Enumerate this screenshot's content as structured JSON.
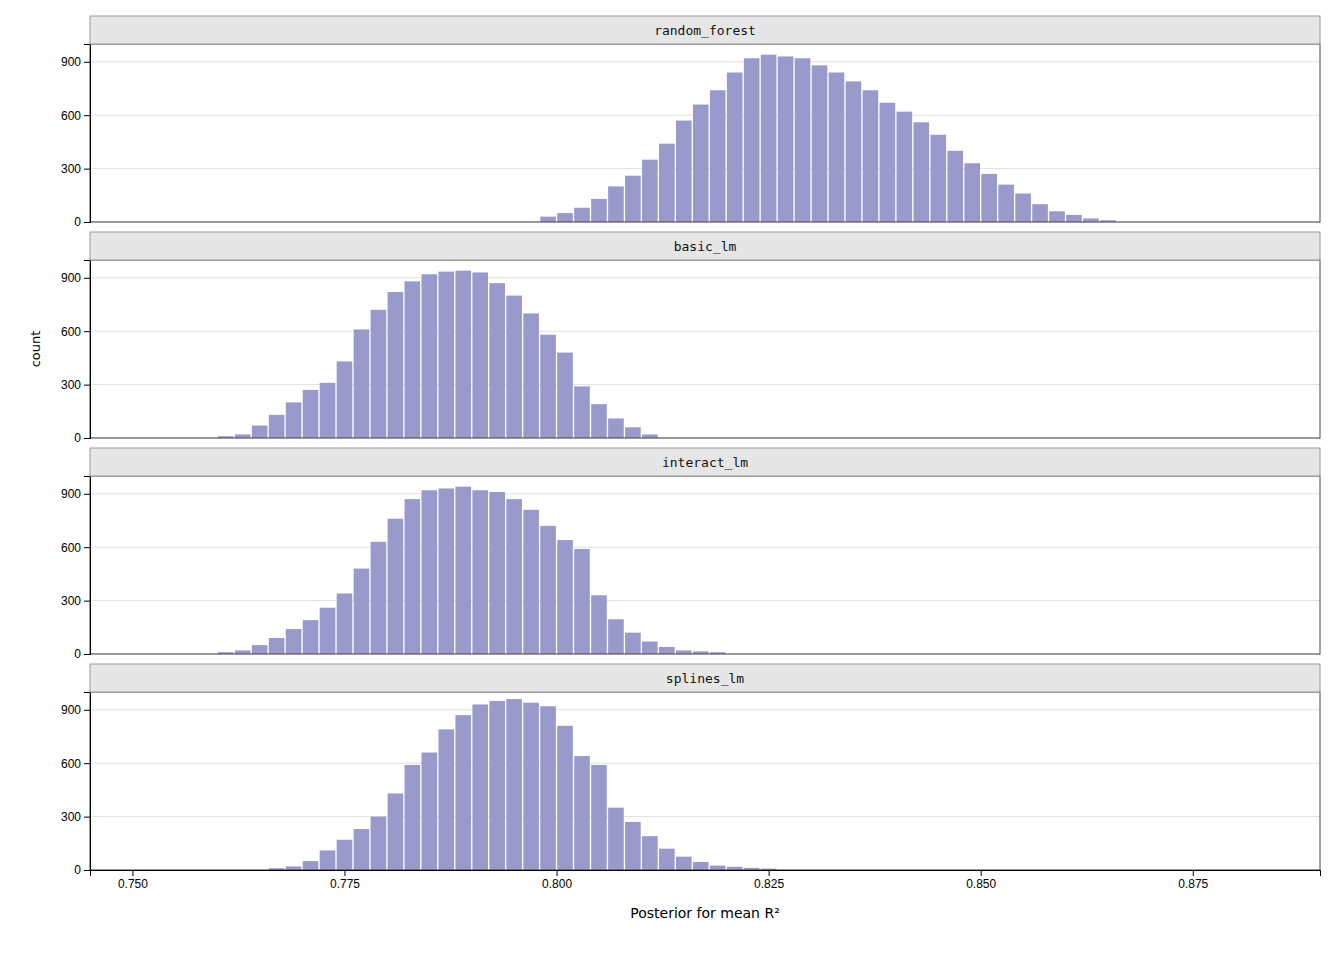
{
  "chart_data": [
    {
      "type": "bar",
      "title": "random_forest",
      "color": "#9999cc",
      "grid": true,
      "tick_labels": "y",
      "xlim": [
        0.745,
        0.89
      ],
      "ylim": [
        0,
        1000
      ],
      "yticks": [
        0,
        300,
        600,
        900
      ],
      "x": [
        0.799,
        0.801,
        0.803,
        0.805,
        0.807,
        0.809,
        0.811,
        0.813,
        0.815,
        0.817,
        0.819,
        0.821,
        0.823,
        0.825,
        0.827,
        0.829,
        0.831,
        0.833,
        0.835,
        0.837,
        0.839,
        0.841,
        0.843,
        0.845,
        0.847,
        0.849,
        0.851,
        0.853,
        0.855,
        0.857,
        0.859,
        0.861,
        0.863,
        0.865
      ],
      "values": [
        30,
        50,
        80,
        130,
        200,
        260,
        350,
        440,
        570,
        660,
        740,
        840,
        920,
        940,
        930,
        920,
        880,
        840,
        790,
        740,
        670,
        620,
        560,
        490,
        400,
        330,
        270,
        210,
        160,
        100,
        60,
        40,
        20,
        10
      ]
    },
    {
      "type": "bar",
      "title": "basic_lm",
      "ylabel": "count",
      "color": "#9999cc",
      "grid": true,
      "tick_labels": "y",
      "xlim": [
        0.745,
        0.89
      ],
      "ylim": [
        0,
        1000
      ],
      "yticks": [
        0,
        300,
        600,
        900
      ],
      "x": [
        0.761,
        0.763,
        0.765,
        0.767,
        0.769,
        0.771,
        0.773,
        0.775,
        0.777,
        0.779,
        0.781,
        0.783,
        0.785,
        0.787,
        0.789,
        0.791,
        0.793,
        0.795,
        0.797,
        0.799,
        0.801,
        0.803,
        0.805,
        0.807,
        0.809,
        0.811
      ],
      "values": [
        10,
        20,
        70,
        130,
        200,
        270,
        310,
        430,
        610,
        720,
        820,
        880,
        920,
        935,
        940,
        930,
        870,
        800,
        700,
        580,
        480,
        290,
        190,
        110,
        60,
        20
      ]
    },
    {
      "type": "bar",
      "title": "interact_lm",
      "color": "#9999cc",
      "grid": true,
      "tick_labels": "y",
      "xlim": [
        0.745,
        0.89
      ],
      "ylim": [
        0,
        1000
      ],
      "yticks": [
        0,
        300,
        600,
        900
      ],
      "x": [
        0.761,
        0.763,
        0.765,
        0.767,
        0.769,
        0.771,
        0.773,
        0.775,
        0.777,
        0.779,
        0.781,
        0.783,
        0.785,
        0.787,
        0.789,
        0.791,
        0.793,
        0.795,
        0.797,
        0.799,
        0.801,
        0.803,
        0.805,
        0.807,
        0.809,
        0.811,
        0.813,
        0.815,
        0.817,
        0.819
      ],
      "values": [
        10,
        20,
        50,
        90,
        140,
        190,
        260,
        340,
        480,
        630,
        760,
        870,
        920,
        930,
        940,
        920,
        910,
        870,
        810,
        720,
        640,
        590,
        330,
        195,
        120,
        70,
        40,
        20,
        15,
        10
      ]
    },
    {
      "type": "bar",
      "title": "splines_lm",
      "xlabel": "Posterior for mean R²",
      "color": "#9999cc",
      "grid": true,
      "xlim": [
        0.745,
        0.89
      ],
      "ylim": [
        0,
        1000
      ],
      "yticks": [
        0,
        300,
        600,
        900
      ],
      "xticks": [
        {
          "value": 0.75,
          "label": "0.750"
        },
        {
          "value": 0.775,
          "label": "0.775"
        },
        {
          "value": 0.8,
          "label": "0.800"
        },
        {
          "value": 0.825,
          "label": "0.825"
        },
        {
          "value": 0.85,
          "label": "0.850"
        },
        {
          "value": 0.875,
          "label": "0.875"
        }
      ],
      "x": [
        0.767,
        0.769,
        0.771,
        0.773,
        0.775,
        0.777,
        0.779,
        0.781,
        0.783,
        0.785,
        0.787,
        0.789,
        0.791,
        0.793,
        0.795,
        0.797,
        0.799,
        0.801,
        0.803,
        0.805,
        0.807,
        0.809,
        0.811,
        0.813,
        0.815,
        0.817,
        0.819,
        0.821,
        0.823,
        0.825
      ],
      "values": [
        10,
        20,
        50,
        110,
        170,
        230,
        300,
        430,
        590,
        660,
        790,
        870,
        930,
        950,
        960,
        940,
        920,
        810,
        640,
        590,
        350,
        270,
        190,
        120,
        75,
        45,
        25,
        18,
        12,
        8
      ]
    }
  ]
}
